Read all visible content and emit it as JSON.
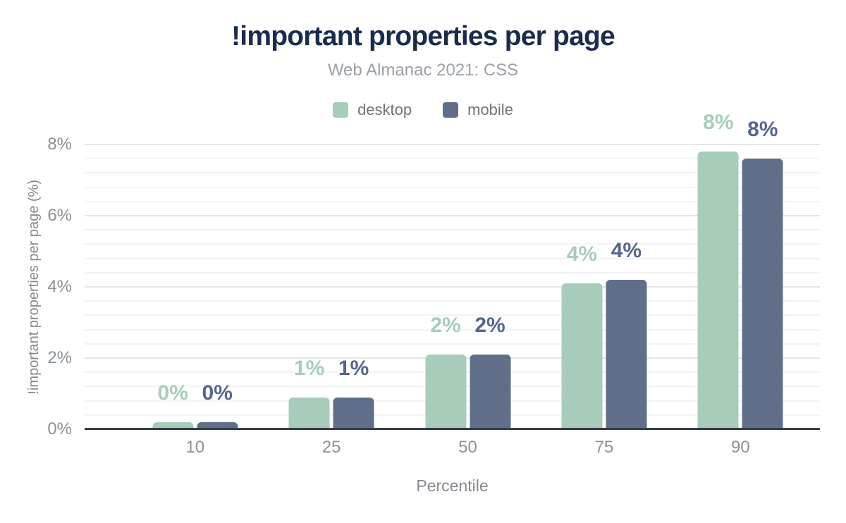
{
  "chart_data": {
    "type": "bar",
    "title": "!important properties per page",
    "subtitle": "Web Almanac 2021: CSS",
    "categories": [
      "10",
      "25",
      "50",
      "75",
      "90"
    ],
    "series": [
      {
        "name": "desktop",
        "color": "#a8ccba",
        "label_color": "#a8ccba",
        "values": [
          0.2,
          0.9,
          2.1,
          4.1,
          7.8
        ],
        "value_labels": [
          "0%",
          "1%",
          "2%",
          "4%",
          "8%"
        ]
      },
      {
        "name": "mobile",
        "color": "#5f6f8a",
        "label_color": "#54668e",
        "values": [
          0.2,
          0.9,
          2.1,
          4.2,
          7.6
        ],
        "value_labels": [
          "0%",
          "1%",
          "2%",
          "4%",
          "8%"
        ]
      }
    ],
    "xlabel": "Percentile",
    "ylabel": "!important properties per page (%)",
    "ylim": [
      0,
      8
    ],
    "yticks": [
      {
        "value": 0,
        "label": "0%"
      },
      {
        "value": 2,
        "label": "2%"
      },
      {
        "value": 4,
        "label": "4%"
      },
      {
        "value": 6,
        "label": "6%"
      },
      {
        "value": 8,
        "label": "8%"
      }
    ],
    "minor_grid_step": 0.4,
    "grid": true,
    "legend_position": "top"
  },
  "colors": {
    "background": "#ffffff",
    "title": "#1b2b4d",
    "subtitle": "#9ba1a7",
    "legend_text": "#6e7478",
    "axis_tick": "#8b9196",
    "axis_title": "#84898f",
    "axis_line": "#353d46",
    "grid_major": "#e5e5e5",
    "grid_minor": "#f3f3f3"
  }
}
